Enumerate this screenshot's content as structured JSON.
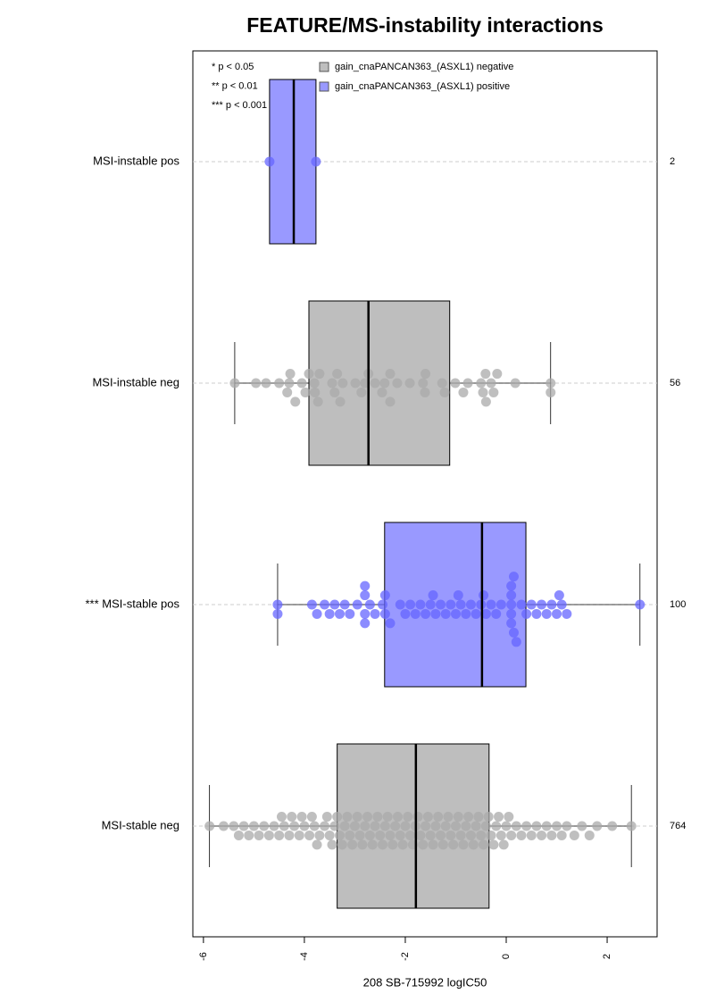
{
  "chart_data": {
    "type": "boxplot",
    "title": "FEATURE/MS-instability interactions",
    "xlabel": "208 SB-715992 logIC50",
    "xlim": [
      -6.21,
      2.99
    ],
    "xticks": [
      -6,
      -4,
      -2,
      0,
      2
    ],
    "notes": [
      "* p < 0.05",
      "** p < 0.01",
      "*** p < 0.001"
    ],
    "series": [
      {
        "name": "gain_cnaPANCAN363_(ASXL1) negative",
        "color": "#bebebe",
        "point_color": "#aaaaaa"
      },
      {
        "name": "gain_cnaPANCAN363_(ASXL1) positive",
        "color": "#9999ff",
        "point_color": "#6666ff"
      }
    ],
    "groups": [
      {
        "label": "MSI-instable pos",
        "n": 2,
        "series": 1,
        "whislo": -4.69,
        "q1": -4.69,
        "med": -4.21,
        "q3": -3.77,
        "whishi": -3.77,
        "points": [
          -4.69,
          -3.77
        ]
      },
      {
        "label": "MSI-instable neg",
        "n": 56,
        "series": 0,
        "whislo": -5.38,
        "q1": -3.91,
        "med": -2.73,
        "q3": -1.12,
        "whishi": 0.88,
        "points": [
          -5.38,
          -4.96,
          -4.76,
          -4.5,
          -4.34,
          -4.3,
          -4.28,
          -4.18,
          -4.05,
          -3.98,
          -3.91,
          -3.8,
          -3.79,
          -3.73,
          -3.7,
          -3.45,
          -3.4,
          -3.35,
          -3.29,
          -3.24,
          -2.99,
          -2.87,
          -2.8,
          -2.73,
          -2.6,
          -2.46,
          -2.41,
          -2.3,
          -2.3,
          -2.16,
          -1.91,
          -1.65,
          -1.61,
          -1.6,
          -1.27,
          -1.22,
          -1.01,
          -0.85,
          -0.76,
          -0.5,
          -0.46,
          -0.41,
          -0.4,
          -0.3,
          -0.25,
          -0.18,
          0.18,
          0.88,
          0.88
        ]
      },
      {
        "label": "*** MSI-stable pos",
        "n": 100,
        "series": 1,
        "whislo": -4.53,
        "q1": -2.41,
        "med": -0.48,
        "q3": 0.39,
        "whishi": 2.65,
        "points": [
          -4.53,
          -4.53,
          -3.85,
          -3.75,
          -3.6,
          -3.5,
          -3.4,
          -3.3,
          -3.2,
          -3.1,
          -2.95,
          -2.8,
          -2.8,
          -2.8,
          -2.8,
          -2.7,
          -2.6,
          -2.45,
          -2.4,
          -2.4,
          -2.3,
          -2.1,
          -2.0,
          -1.9,
          -1.8,
          -1.7,
          -1.6,
          -1.5,
          -1.45,
          -1.4,
          -1.3,
          -1.2,
          -1.1,
          -1.0,
          -0.95,
          -0.9,
          -0.8,
          -0.7,
          -0.6,
          -0.5,
          -0.45,
          -0.4,
          -0.3,
          -0.2,
          -0.1,
          0.1,
          0.1,
          0.1,
          0.1,
          0.1,
          0.15,
          0.15,
          0.2,
          0.3,
          0.4,
          0.5,
          0.6,
          0.7,
          0.8,
          0.9,
          1.0,
          1.05,
          1.1,
          1.2,
          2.65
        ]
      },
      {
        "label": "MSI-stable neg",
        "n": 764,
        "series": 0,
        "whislo": -5.88,
        "q1": -3.35,
        "med": -1.79,
        "q3": -0.34,
        "whishi": 2.48,
        "points": [
          -5.88,
          -5.6,
          -5.4,
          -5.3,
          -5.2,
          -5.1,
          -5.0,
          -4.9,
          -4.8,
          -4.7,
          -4.6,
          -4.5,
          -4.45,
          -4.4,
          -4.3,
          -4.25,
          -4.2,
          -4.1,
          -4.05,
          -4.0,
          -3.9,
          -3.85,
          -3.8,
          -3.75,
          -3.7,
          -3.6,
          -3.55,
          -3.5,
          -3.45,
          -3.4,
          -3.35,
          -3.3,
          -3.25,
          -3.2,
          -3.15,
          -3.1,
          -3.05,
          -3.0,
          -2.95,
          -2.9,
          -2.85,
          -2.8,
          -2.75,
          -2.7,
          -2.65,
          -2.6,
          -2.55,
          -2.5,
          -2.45,
          -2.4,
          -2.35,
          -2.3,
          -2.25,
          -2.2,
          -2.15,
          -2.1,
          -2.05,
          -2.0,
          -1.95,
          -1.9,
          -1.85,
          -1.8,
          -1.75,
          -1.7,
          -1.65,
          -1.6,
          -1.55,
          -1.5,
          -1.45,
          -1.4,
          -1.35,
          -1.3,
          -1.25,
          -1.2,
          -1.15,
          -1.1,
          -1.05,
          -1.0,
          -0.95,
          -0.9,
          -0.85,
          -0.8,
          -0.75,
          -0.7,
          -0.65,
          -0.6,
          -0.55,
          -0.5,
          -0.45,
          -0.4,
          -0.35,
          -0.3,
          -0.25,
          -0.2,
          -0.15,
          -0.1,
          -0.05,
          0.0,
          0.05,
          0.1,
          0.2,
          0.3,
          0.4,
          0.5,
          0.6,
          0.7,
          0.8,
          0.9,
          1.0,
          1.1,
          1.2,
          1.35,
          1.5,
          1.65,
          1.8,
          2.1,
          2.48
        ]
      }
    ]
  }
}
